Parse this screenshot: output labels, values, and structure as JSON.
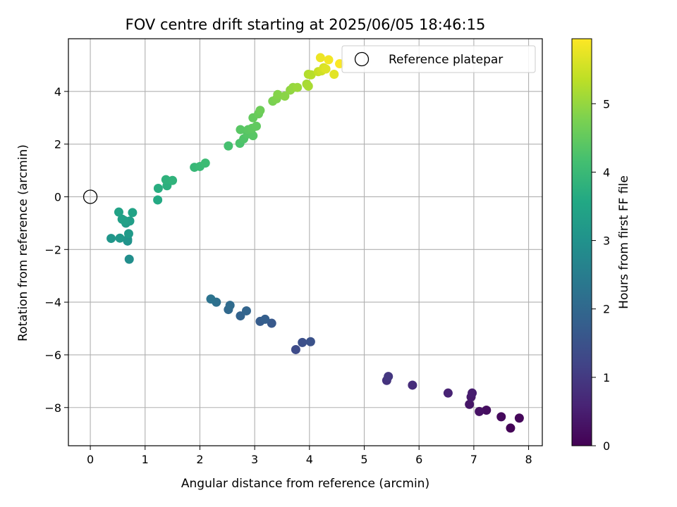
{
  "chart_data": {
    "type": "scatter",
    "title": "FOV centre drift starting at 2025/06/05 18:46:15",
    "xlabel": "Angular distance from reference (arcmin)",
    "ylabel": "Rotation from reference (arcmin)",
    "xlim": [
      -0.4,
      8.25
    ],
    "ylim": [
      -9.45,
      6.0
    ],
    "x_ticks": [
      0,
      1,
      2,
      3,
      4,
      5,
      6,
      7,
      8
    ],
    "y_ticks": [
      -8,
      -6,
      -4,
      -2,
      0,
      2,
      4
    ],
    "grid": true,
    "legend": {
      "position": "top-right",
      "entries": [
        {
          "label": "Reference platepar",
          "marker": "open-circle"
        }
      ]
    },
    "reference_point": {
      "x": 0,
      "y": 0
    },
    "colorbar": {
      "label": "Hours from first FF file",
      "range": [
        0,
        5.95
      ],
      "ticks": [
        0,
        1,
        2,
        3,
        4,
        5
      ],
      "colormap": "viridis"
    },
    "series": [
      {
        "name": "FOV centre drift",
        "color_by": "hours",
        "points": [
          {
            "x": 7.67,
            "y": -8.78,
            "hours": 0.05
          },
          {
            "x": 7.83,
            "y": -8.4,
            "hours": 0.1
          },
          {
            "x": 7.5,
            "y": -8.35,
            "hours": 0.15
          },
          {
            "x": 7.23,
            "y": -8.1,
            "hours": 0.22
          },
          {
            "x": 7.1,
            "y": -8.15,
            "hours": 0.28
          },
          {
            "x": 6.92,
            "y": -7.88,
            "hours": 0.35
          },
          {
            "x": 6.95,
            "y": -7.6,
            "hours": 0.42
          },
          {
            "x": 6.97,
            "y": -7.45,
            "hours": 0.48
          },
          {
            "x": 6.53,
            "y": -7.45,
            "hours": 0.58
          },
          {
            "x": 5.88,
            "y": -7.15,
            "hours": 0.75
          },
          {
            "x": 5.41,
            "y": -6.97,
            "hours": 0.88
          },
          {
            "x": 5.44,
            "y": -6.82,
            "hours": 0.95
          },
          {
            "x": 3.75,
            "y": -5.8,
            "hours": 1.35
          },
          {
            "x": 3.87,
            "y": -5.53,
            "hours": 1.45
          },
          {
            "x": 4.02,
            "y": -5.5,
            "hours": 1.5
          },
          {
            "x": 3.31,
            "y": -4.8,
            "hours": 1.65
          },
          {
            "x": 3.1,
            "y": -4.73,
            "hours": 1.72
          },
          {
            "x": 3.19,
            "y": -4.65,
            "hours": 1.78
          },
          {
            "x": 2.74,
            "y": -4.52,
            "hours": 1.88
          },
          {
            "x": 2.85,
            "y": -4.33,
            "hours": 1.92
          },
          {
            "x": 2.52,
            "y": -4.28,
            "hours": 2.02
          },
          {
            "x": 2.55,
            "y": -4.12,
            "hours": 2.08
          },
          {
            "x": 2.3,
            "y": -4.0,
            "hours": 2.18
          },
          {
            "x": 2.2,
            "y": -3.88,
            "hours": 2.25
          },
          {
            "x": 0.71,
            "y": -2.37,
            "hours": 2.9
          },
          {
            "x": 0.68,
            "y": -1.68,
            "hours": 3.0
          },
          {
            "x": 0.68,
            "y": -1.62,
            "hours": 3.05
          },
          {
            "x": 0.38,
            "y": -1.58,
            "hours": 3.1
          },
          {
            "x": 0.54,
            "y": -1.57,
            "hours": 3.15
          },
          {
            "x": 0.7,
            "y": -1.4,
            "hours": 3.2
          },
          {
            "x": 0.65,
            "y": -1.0,
            "hours": 3.25
          },
          {
            "x": 0.72,
            "y": -0.92,
            "hours": 3.3
          },
          {
            "x": 0.58,
            "y": -0.85,
            "hours": 3.35
          },
          {
            "x": 0.62,
            "y": -0.9,
            "hours": 3.38
          },
          {
            "x": 0.52,
            "y": -0.58,
            "hours": 3.42
          },
          {
            "x": 0.77,
            "y": -0.6,
            "hours": 3.45
          },
          {
            "x": 1.23,
            "y": -0.12,
            "hours": 3.6
          },
          {
            "x": 1.24,
            "y": 0.32,
            "hours": 3.7
          },
          {
            "x": 1.4,
            "y": 0.42,
            "hours": 3.75
          },
          {
            "x": 1.38,
            "y": 0.65,
            "hours": 3.8
          },
          {
            "x": 1.5,
            "y": 0.62,
            "hours": 3.83
          },
          {
            "x": 1.9,
            "y": 1.12,
            "hours": 3.95
          },
          {
            "x": 2.0,
            "y": 1.15,
            "hours": 4.0
          },
          {
            "x": 2.1,
            "y": 1.28,
            "hours": 4.05
          },
          {
            "x": 2.52,
            "y": 1.93,
            "hours": 4.18
          },
          {
            "x": 2.73,
            "y": 2.03,
            "hours": 4.25
          },
          {
            "x": 2.8,
            "y": 2.2,
            "hours": 4.3
          },
          {
            "x": 2.87,
            "y": 2.38,
            "hours": 4.35
          },
          {
            "x": 2.97,
            "y": 2.32,
            "hours": 4.38
          },
          {
            "x": 2.74,
            "y": 2.55,
            "hours": 4.4
          },
          {
            "x": 2.88,
            "y": 2.55,
            "hours": 4.42
          },
          {
            "x": 2.95,
            "y": 2.6,
            "hours": 4.45
          },
          {
            "x": 3.03,
            "y": 2.68,
            "hours": 4.48
          },
          {
            "x": 2.97,
            "y": 3.0,
            "hours": 4.52
          },
          {
            "x": 3.07,
            "y": 3.15,
            "hours": 4.57
          },
          {
            "x": 3.1,
            "y": 3.28,
            "hours": 4.62
          },
          {
            "x": 3.33,
            "y": 3.63,
            "hours": 4.75
          },
          {
            "x": 3.4,
            "y": 3.72,
            "hours": 4.8
          },
          {
            "x": 3.42,
            "y": 3.88,
            "hours": 4.85
          },
          {
            "x": 3.55,
            "y": 3.82,
            "hours": 4.9
          },
          {
            "x": 3.65,
            "y": 4.05,
            "hours": 4.95
          },
          {
            "x": 3.7,
            "y": 4.15,
            "hours": 5.0
          },
          {
            "x": 3.78,
            "y": 4.15,
            "hours": 5.05
          },
          {
            "x": 3.95,
            "y": 4.28,
            "hours": 5.15
          },
          {
            "x": 3.98,
            "y": 4.2,
            "hours": 5.18
          },
          {
            "x": 3.98,
            "y": 4.65,
            "hours": 5.25
          },
          {
            "x": 4.03,
            "y": 4.63,
            "hours": 5.3
          },
          {
            "x": 4.16,
            "y": 4.75,
            "hours": 5.45
          },
          {
            "x": 4.22,
            "y": 4.78,
            "hours": 5.52
          },
          {
            "x": 4.26,
            "y": 4.9,
            "hours": 5.6
          },
          {
            "x": 4.3,
            "y": 4.85,
            "hours": 5.65
          },
          {
            "x": 4.45,
            "y": 4.65,
            "hours": 5.7
          },
          {
            "x": 4.2,
            "y": 5.28,
            "hours": 5.8
          },
          {
            "x": 4.35,
            "y": 5.2,
            "hours": 5.85
          },
          {
            "x": 4.55,
            "y": 5.05,
            "hours": 5.92
          }
        ]
      }
    ]
  }
}
